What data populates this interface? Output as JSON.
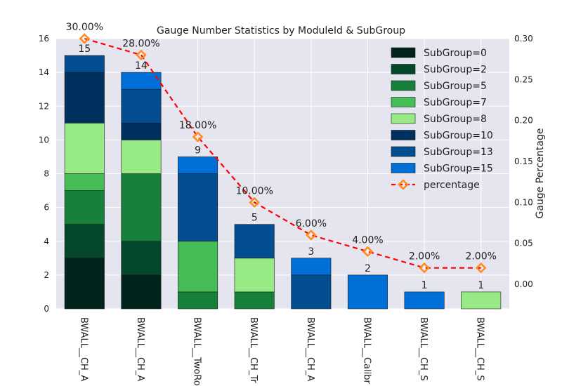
{
  "chart_data": {
    "type": "bar",
    "title": "Gauge Number Statistics by ModuleId & SubGroup",
    "xlabel": "",
    "ylabel": "",
    "y2label": "Gauge Percentage",
    "categories": [
      "BWALL__CH_A",
      "BWALL__CH_A",
      "BWALL__TwoRo",
      "BWALL__CH_Tr",
      "BWALL__CH_A",
      "BWALL__Calibr",
      "BWALL__CH_S",
      "BWALL__CH_S"
    ],
    "ylim": [
      0,
      16
    ],
    "y2lim": [
      -0.03,
      0.3
    ],
    "yticks": [
      "0",
      "2",
      "4",
      "6",
      "8",
      "10",
      "12",
      "14",
      "16"
    ],
    "y2ticks": [
      "0.00",
      "0.05",
      "0.10",
      "0.15",
      "0.20",
      "0.25",
      "0.30"
    ],
    "grid": true,
    "legend_position": "top-right",
    "series": [
      {
        "name": "SubGroup=0",
        "color": "#00241b",
        "values": [
          3,
          2,
          0,
          0,
          0,
          0,
          0,
          0
        ]
      },
      {
        "name": "SubGroup=2",
        "color": "#04472b",
        "values": [
          2,
          2,
          0,
          0,
          0,
          0,
          0,
          0
        ]
      },
      {
        "name": "SubGroup=5",
        "color": "#17803a",
        "values": [
          2,
          4,
          1,
          1,
          0,
          0,
          0,
          0
        ]
      },
      {
        "name": "SubGroup=7",
        "color": "#47bd57",
        "values": [
          1,
          0,
          3,
          0,
          0,
          0,
          0,
          0
        ]
      },
      {
        "name": "SubGroup=8",
        "color": "#98ea87",
        "values": [
          3,
          2,
          0,
          2,
          0,
          0,
          0,
          1
        ]
      },
      {
        "name": "SubGroup=10",
        "color": "#00305d",
        "values": [
          3,
          1,
          0,
          0,
          0,
          0,
          0,
          0
        ]
      },
      {
        "name": "SubGroup=13",
        "color": "#034d91",
        "values": [
          1,
          2,
          4,
          2,
          2,
          0,
          0,
          0
        ]
      },
      {
        "name": "SubGroup=15",
        "color": "#0070d8",
        "values": [
          0,
          1,
          1,
          0,
          1,
          2,
          1,
          0
        ]
      }
    ],
    "totals": [
      15,
      14,
      9,
      5,
      3,
      2,
      1,
      1
    ],
    "total_labels": [
      "15",
      "14",
      "9",
      "5",
      "3",
      "2",
      "1",
      "1"
    ],
    "percentage": {
      "name": "percentage",
      "values": [
        0.3,
        0.28,
        0.18,
        0.1,
        0.06,
        0.04,
        0.02,
        0.02
      ],
      "labels": [
        "30.00%",
        "28.00%",
        "18.00%",
        "10.00%",
        "6.00%",
        "4.00%",
        "2.00%",
        "2.00%"
      ],
      "line_color": "#ff0000",
      "marker_color": "#ff8c1a"
    }
  },
  "colors": {
    "plot_background": "#e5e5ef",
    "grid": "#ffffff"
  }
}
